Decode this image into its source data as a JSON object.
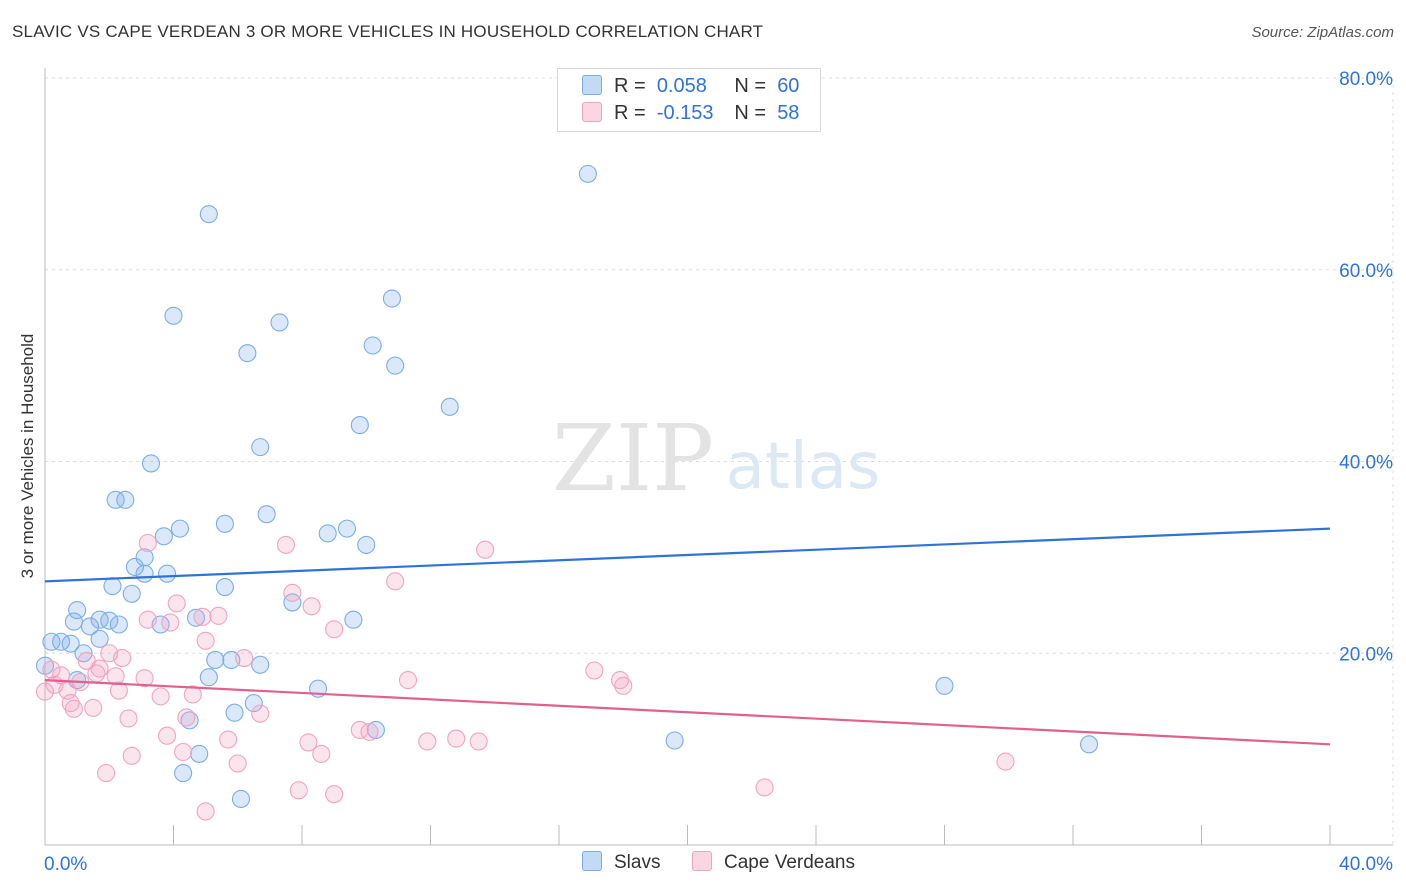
{
  "title": "SLAVIC VS CAPE VERDEAN 3 OR MORE VEHICLES IN HOUSEHOLD CORRELATION CHART",
  "source": "Source: ZipAtlas.com",
  "watermark": {
    "zip": "ZIP",
    "atlas": "atlas"
  },
  "legend": {
    "r_label": "R =",
    "n_label": "N =",
    "rows": [
      {
        "name": "Slavs",
        "r": "0.058",
        "n": "60",
        "color": "#7aaee8"
      },
      {
        "name": "Cape Verdeans",
        "r": "-0.153",
        "n": "58",
        "color": "#f2a3bf"
      }
    ]
  },
  "chart_data": {
    "type": "scatter",
    "xlabel": "",
    "ylabel": "3 or more Vehicles in Household",
    "xlim": [
      0,
      40
    ],
    "ylim": [
      0,
      80
    ],
    "x_tick_labels": [
      "0.0%",
      "40.0%"
    ],
    "y_tick_labels": [
      "20.0%",
      "40.0%",
      "60.0%",
      "80.0%"
    ],
    "y_ticks": [
      20,
      40,
      60,
      80
    ],
    "grid": true,
    "series": [
      {
        "name": "Slavs",
        "color": "#7aaee8",
        "line_color": "#2f73d8",
        "trend": {
          "x": [
            0,
            40
          ],
          "y": [
            27.5,
            33.0
          ]
        },
        "points": [
          [
            0.2,
            21.2
          ],
          [
            0.5,
            21.2
          ],
          [
            0.8,
            21.0
          ],
          [
            1.0,
            24.5
          ],
          [
            0.9,
            23.3
          ],
          [
            1.4,
            22.8
          ],
          [
            1.7,
            21.5
          ],
          [
            1.2,
            20.0
          ],
          [
            1.7,
            23.5
          ],
          [
            2.0,
            23.4
          ],
          [
            2.3,
            23.0
          ],
          [
            2.1,
            27.0
          ],
          [
            2.2,
            36.0
          ],
          [
            2.5,
            36.0
          ],
          [
            2.7,
            26.2
          ],
          [
            2.8,
            29.0
          ],
          [
            3.1,
            30.0
          ],
          [
            3.1,
            28.3
          ],
          [
            3.3,
            39.8
          ],
          [
            3.6,
            23.0
          ],
          [
            3.7,
            32.2
          ],
          [
            3.8,
            28.3
          ],
          [
            4.0,
            55.2
          ],
          [
            4.2,
            33.0
          ],
          [
            4.5,
            13.0
          ],
          [
            4.7,
            23.7
          ],
          [
            4.8,
            9.5
          ],
          [
            4.3,
            7.5
          ],
          [
            5.1,
            65.8
          ],
          [
            5.1,
            17.5
          ],
          [
            5.3,
            19.3
          ],
          [
            5.6,
            26.9
          ],
          [
            5.6,
            33.5
          ],
          [
            5.8,
            19.3
          ],
          [
            5.9,
            13.8
          ],
          [
            6.1,
            4.8
          ],
          [
            6.3,
            51.3
          ],
          [
            6.5,
            14.8
          ],
          [
            6.7,
            18.8
          ],
          [
            6.7,
            41.5
          ],
          [
            6.9,
            34.5
          ],
          [
            7.3,
            54.5
          ],
          [
            7.7,
            25.3
          ],
          [
            8.5,
            16.3
          ],
          [
            8.8,
            32.5
          ],
          [
            9.4,
            33.0
          ],
          [
            9.6,
            23.5
          ],
          [
            9.8,
            43.8
          ],
          [
            10.0,
            31.3
          ],
          [
            10.2,
            52.1
          ],
          [
            10.3,
            12.0
          ],
          [
            10.8,
            57.0
          ],
          [
            10.9,
            50.0
          ],
          [
            12.6,
            45.7
          ],
          [
            16.9,
            70.0
          ],
          [
            19.6,
            10.9
          ],
          [
            28.0,
            16.6
          ],
          [
            32.5,
            10.5
          ],
          [
            0.0,
            18.7
          ],
          [
            1.0,
            17.2
          ]
        ]
      },
      {
        "name": "Cape Verdeans",
        "color": "#f2a3bf",
        "line_color": "#e0608e",
        "trend": {
          "x": [
            0,
            40
          ],
          "y": [
            17.2,
            10.5
          ]
        },
        "points": [
          [
            0.0,
            16.0
          ],
          [
            0.2,
            18.3
          ],
          [
            0.3,
            16.7
          ],
          [
            0.5,
            17.7
          ],
          [
            0.7,
            16.1
          ],
          [
            0.8,
            14.8
          ],
          [
            0.9,
            14.2
          ],
          [
            1.1,
            17.0
          ],
          [
            1.3,
            19.2
          ],
          [
            1.5,
            14.3
          ],
          [
            1.6,
            17.9
          ],
          [
            1.7,
            18.4
          ],
          [
            1.9,
            7.5
          ],
          [
            2.0,
            20.0
          ],
          [
            2.2,
            17.6
          ],
          [
            2.3,
            16.1
          ],
          [
            2.4,
            19.5
          ],
          [
            2.6,
            13.2
          ],
          [
            2.7,
            9.3
          ],
          [
            3.1,
            17.4
          ],
          [
            3.2,
            23.5
          ],
          [
            3.2,
            31.5
          ],
          [
            3.6,
            15.5
          ],
          [
            3.8,
            11.4
          ],
          [
            3.9,
            23.2
          ],
          [
            4.1,
            25.2
          ],
          [
            4.3,
            9.7
          ],
          [
            4.4,
            13.3
          ],
          [
            4.6,
            15.7
          ],
          [
            4.9,
            23.8
          ],
          [
            5.0,
            3.5
          ],
          [
            5.0,
            21.3
          ],
          [
            5.4,
            23.9
          ],
          [
            5.7,
            11.0
          ],
          [
            6.0,
            8.5
          ],
          [
            6.2,
            19.5
          ],
          [
            6.7,
            13.7
          ],
          [
            7.5,
            31.3
          ],
          [
            7.7,
            26.3
          ],
          [
            7.9,
            5.7
          ],
          [
            8.2,
            10.7
          ],
          [
            8.3,
            24.9
          ],
          [
            8.6,
            9.5
          ],
          [
            9.0,
            5.3
          ],
          [
            9.0,
            22.5
          ],
          [
            9.8,
            12.0
          ],
          [
            10.1,
            11.8
          ],
          [
            10.9,
            27.5
          ],
          [
            11.3,
            17.2
          ],
          [
            11.9,
            10.8
          ],
          [
            12.8,
            11.1
          ],
          [
            13.5,
            10.8
          ],
          [
            13.7,
            30.8
          ],
          [
            17.1,
            18.2
          ],
          [
            17.9,
            17.2
          ],
          [
            18.0,
            16.6
          ],
          [
            22.4,
            6.0
          ],
          [
            29.9,
            8.7
          ]
        ]
      }
    ]
  }
}
